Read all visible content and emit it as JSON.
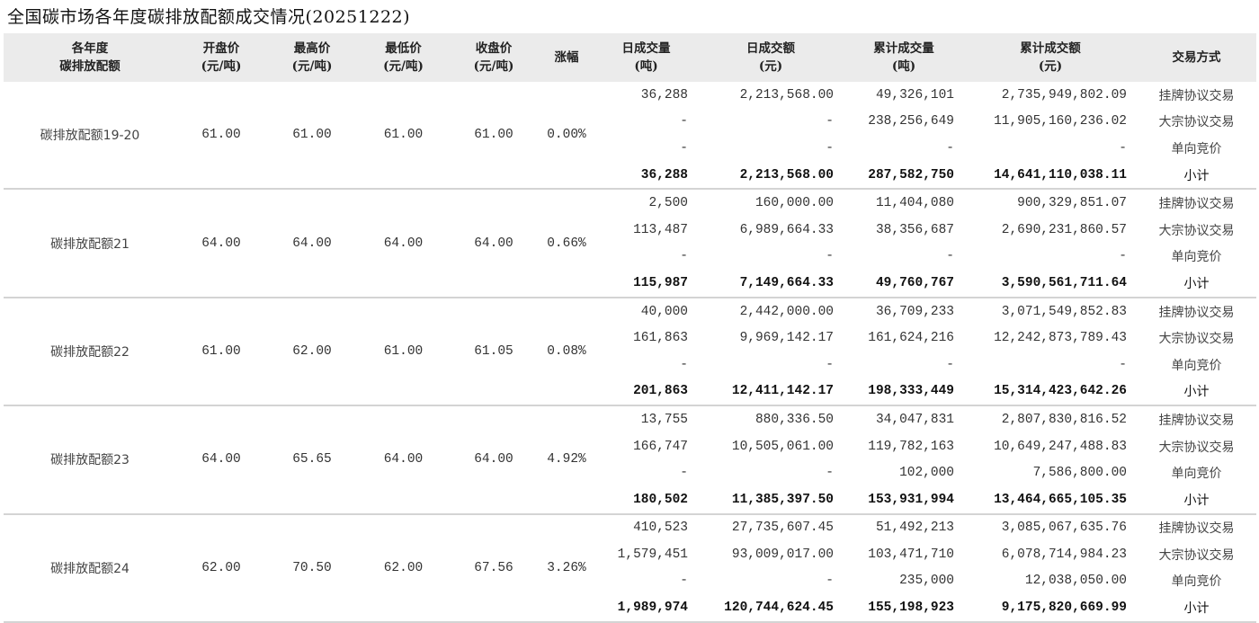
{
  "title": "全国碳市场各年度碳排放配额成交情况(20251222)",
  "headers": [
    {
      "l1": "各年度",
      "l2": "碳排放配额"
    },
    {
      "l1": "开盘价",
      "l2": "(元/吨)"
    },
    {
      "l1": "最高价",
      "l2": "(元/吨)"
    },
    {
      "l1": "最低价",
      "l2": "(元/吨)"
    },
    {
      "l1": "收盘价",
      "l2": "(元/吨)"
    },
    {
      "l1": "涨幅",
      "l2": ""
    },
    {
      "l1": "日成交量",
      "l2": "(吨)"
    },
    {
      "l1": "日成交额",
      "l2": "(元)"
    },
    {
      "l1": "累计成交量",
      "l2": "(吨)"
    },
    {
      "l1": "累计成交额",
      "l2": "(元)"
    },
    {
      "l1": "交易方式",
      "l2": ""
    }
  ],
  "groups": [
    {
      "name": "碳排放配额19-20",
      "open": "61.00",
      "high": "61.00",
      "low": "61.00",
      "close": "61.00",
      "change": "0.00%",
      "rows": [
        {
          "dv": "36,288",
          "da": "2,213,568.00",
          "cv": "49,326,101",
          "ca": "2,735,949,802.09",
          "method": "挂牌协议交易"
        },
        {
          "dv": "-",
          "da": "-",
          "cv": "238,256,649",
          "ca": "11,905,160,236.02",
          "method": "大宗协议交易"
        },
        {
          "dv": "-",
          "da": "-",
          "cv": "-",
          "ca": "-",
          "method": "单向竞价"
        },
        {
          "dv": "36,288",
          "da": "2,213,568.00",
          "cv": "287,582,750",
          "ca": "14,641,110,038.11",
          "method": "小计"
        }
      ]
    },
    {
      "name": "碳排放配额21",
      "open": "64.00",
      "high": "64.00",
      "low": "64.00",
      "close": "64.00",
      "change": "0.66%",
      "rows": [
        {
          "dv": "2,500",
          "da": "160,000.00",
          "cv": "11,404,080",
          "ca": "900,329,851.07",
          "method": "挂牌协议交易"
        },
        {
          "dv": "113,487",
          "da": "6,989,664.33",
          "cv": "38,356,687",
          "ca": "2,690,231,860.57",
          "method": "大宗协议交易"
        },
        {
          "dv": "-",
          "da": "-",
          "cv": "-",
          "ca": "-",
          "method": "单向竞价"
        },
        {
          "dv": "115,987",
          "da": "7,149,664.33",
          "cv": "49,760,767",
          "ca": "3,590,561,711.64",
          "method": "小计"
        }
      ]
    },
    {
      "name": "碳排放配额22",
      "open": "61.00",
      "high": "62.00",
      "low": "61.00",
      "close": "61.05",
      "change": "0.08%",
      "rows": [
        {
          "dv": "40,000",
          "da": "2,442,000.00",
          "cv": "36,709,233",
          "ca": "3,071,549,852.83",
          "method": "挂牌协议交易"
        },
        {
          "dv": "161,863",
          "da": "9,969,142.17",
          "cv": "161,624,216",
          "ca": "12,242,873,789.43",
          "method": "大宗协议交易"
        },
        {
          "dv": "-",
          "da": "-",
          "cv": "-",
          "ca": "-",
          "method": "单向竞价"
        },
        {
          "dv": "201,863",
          "da": "12,411,142.17",
          "cv": "198,333,449",
          "ca": "15,314,423,642.26",
          "method": "小计"
        }
      ]
    },
    {
      "name": "碳排放配额23",
      "open": "64.00",
      "high": "65.65",
      "low": "64.00",
      "close": "64.00",
      "change": "4.92%",
      "rows": [
        {
          "dv": "13,755",
          "da": "880,336.50",
          "cv": "34,047,831",
          "ca": "2,807,830,816.52",
          "method": "挂牌协议交易"
        },
        {
          "dv": "166,747",
          "da": "10,505,061.00",
          "cv": "119,782,163",
          "ca": "10,649,247,488.83",
          "method": "大宗协议交易"
        },
        {
          "dv": "-",
          "da": "-",
          "cv": "102,000",
          "ca": "7,586,800.00",
          "method": "单向竞价"
        },
        {
          "dv": "180,502",
          "da": "11,385,397.50",
          "cv": "153,931,994",
          "ca": "13,464,665,105.35",
          "method": "小计"
        }
      ]
    },
    {
      "name": "碳排放配额24",
      "open": "62.00",
      "high": "70.50",
      "low": "62.00",
      "close": "67.56",
      "change": "3.26%",
      "rows": [
        {
          "dv": "410,523",
          "da": "27,735,607.45",
          "cv": "51,492,213",
          "ca": "3,085,067,635.76",
          "method": "挂牌协议交易"
        },
        {
          "dv": "1,579,451",
          "da": "93,009,017.00",
          "cv": "103,471,710",
          "ca": "6,078,714,984.23",
          "method": "大宗协议交易"
        },
        {
          "dv": "-",
          "da": "-",
          "cv": "235,000",
          "ca": "12,038,050.00",
          "method": "单向竞价"
        },
        {
          "dv": "1,989,974",
          "da": "120,744,624.45",
          "cv": "155,198,923",
          "ca": "9,175,820,669.99",
          "method": "小计"
        }
      ]
    }
  ]
}
